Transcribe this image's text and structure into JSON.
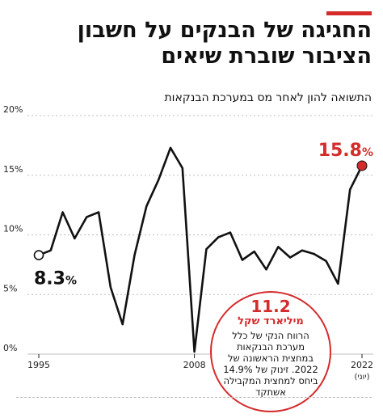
{
  "header": {
    "headline": "החגיגה של הבנקים על חשבון הציבור שוברת שיאים",
    "subtitle": "התשואה להון לאחר מס במערכת הבנקאות"
  },
  "colors": {
    "accent": "#d42b2b",
    "line": "#111111",
    "grid": "#bdbdbd"
  },
  "callout": {
    "value": "11.2",
    "unit": "מיליארד שקל",
    "text": "הרווח הנקי של כלל מערכת הבנקאות במחצית הראשונה של 2022. זינוק של 14.9% ביחס למחצית המקבילה אשתקד"
  },
  "chart_data": {
    "type": "line",
    "xlabel": "",
    "ylabel": "",
    "xlim": [
      1995,
      2022
    ],
    "ylim": [
      0,
      20
    ],
    "grid": true,
    "yticks": [
      "0%",
      "5%",
      "10%",
      "15%",
      "20%"
    ],
    "xticks": [
      "1995",
      "2008",
      "2022"
    ],
    "xtick_sub": "(יוני)",
    "series": [
      {
        "x": [
          1995,
          1996,
          1997,
          1998,
          1999,
          2000,
          2001,
          2002,
          2003,
          2004,
          2005,
          2006,
          2007,
          2008,
          2009,
          2010,
          2011,
          2012,
          2013,
          2014,
          2015,
          2016,
          2017,
          2018,
          2019,
          2020,
          2021,
          2022
        ],
        "values": [
          8.3,
          8.7,
          11.9,
          9.7,
          11.5,
          11.9,
          5.6,
          2.5,
          8.3,
          12.4,
          14.6,
          17.3,
          15.6,
          0.2,
          8.8,
          9.8,
          10.2,
          7.9,
          8.6,
          7.1,
          9.0,
          8.1,
          8.7,
          8.4,
          7.8,
          5.9,
          13.8,
          15.8
        ]
      }
    ],
    "annotations": [
      {
        "label": "8.3",
        "suffix": "%",
        "x": 1995,
        "y": 8.3
      },
      {
        "label": "15.8",
        "suffix": "%",
        "x": 2022,
        "y": 15.8
      }
    ]
  }
}
